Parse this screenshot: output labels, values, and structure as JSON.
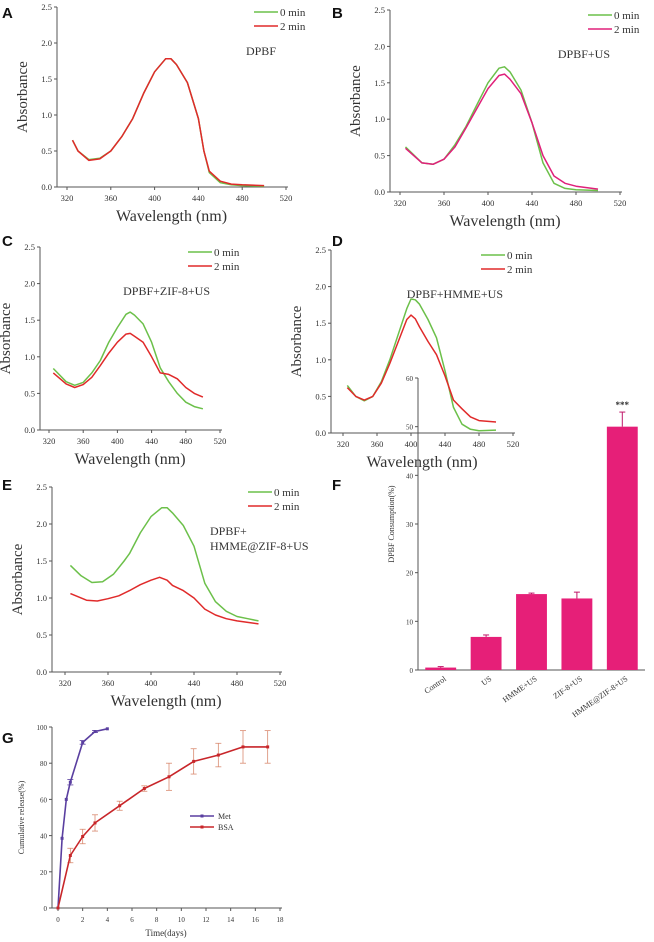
{
  "chart_data": [
    {
      "panel": "A",
      "type": "line",
      "annotation": [
        "DPBF"
      ],
      "xlabel": "Wavelength (nm)",
      "ylabel": "Absorbance",
      "xlim": [
        320,
        520
      ],
      "ylim": [
        0,
        2.5
      ],
      "xticks": [
        320,
        360,
        400,
        440,
        480,
        520
      ],
      "yticks": [
        0.0,
        0.5,
        1.0,
        1.5,
        2.0,
        2.5
      ],
      "legend": "top-right",
      "series": [
        {
          "name": "0 min",
          "color": "#6cc04a",
          "x": [
            325,
            330,
            340,
            350,
            360,
            370,
            380,
            390,
            400,
            410,
            415,
            420,
            430,
            440,
            445,
            450,
            460,
            470,
            480,
            500
          ],
          "y": [
            0.65,
            0.5,
            0.38,
            0.4,
            0.5,
            0.7,
            0.95,
            1.3,
            1.6,
            1.78,
            1.78,
            1.7,
            1.45,
            0.95,
            0.5,
            0.2,
            0.06,
            0.03,
            0.02,
            0.01
          ]
        },
        {
          "name": "2 min",
          "color": "#e02a2a",
          "x": [
            325,
            330,
            340,
            350,
            360,
            370,
            380,
            390,
            400,
            410,
            415,
            420,
            430,
            440,
            445,
            450,
            460,
            470,
            480,
            500
          ],
          "y": [
            0.65,
            0.5,
            0.37,
            0.39,
            0.5,
            0.7,
            0.95,
            1.3,
            1.6,
            1.78,
            1.78,
            1.7,
            1.45,
            0.95,
            0.5,
            0.22,
            0.08,
            0.04,
            0.03,
            0.02
          ]
        }
      ]
    },
    {
      "panel": "B",
      "type": "line",
      "annotation": [
        "DPBF+US"
      ],
      "xlabel": "Wavelength (nm)",
      "ylabel": "Absorbance",
      "xlim": [
        320,
        520
      ],
      "ylim": [
        0,
        2.5
      ],
      "xticks": [
        320,
        360,
        400,
        440,
        480,
        520
      ],
      "yticks": [
        0.0,
        0.5,
        1.0,
        1.5,
        2.0,
        2.5
      ],
      "legend": "top-right",
      "series": [
        {
          "name": "0 min",
          "color": "#6cc04a",
          "x": [
            325,
            340,
            350,
            360,
            370,
            380,
            390,
            400,
            410,
            415,
            420,
            430,
            440,
            450,
            460,
            470,
            480,
            500
          ],
          "y": [
            0.62,
            0.4,
            0.38,
            0.45,
            0.65,
            0.9,
            1.2,
            1.5,
            1.7,
            1.72,
            1.65,
            1.4,
            0.95,
            0.4,
            0.12,
            0.05,
            0.03,
            0.02
          ]
        },
        {
          "name": "2 min",
          "color": "#e0207a",
          "x": [
            325,
            340,
            350,
            360,
            370,
            380,
            390,
            400,
            410,
            415,
            420,
            430,
            440,
            450,
            460,
            470,
            480,
            500
          ],
          "y": [
            0.6,
            0.4,
            0.38,
            0.45,
            0.62,
            0.88,
            1.15,
            1.42,
            1.6,
            1.62,
            1.55,
            1.35,
            0.95,
            0.5,
            0.22,
            0.12,
            0.08,
            0.04
          ]
        }
      ]
    },
    {
      "panel": "C",
      "type": "line",
      "annotation": [
        "DPBF+ZIF-8+US"
      ],
      "xlabel": "Wavelength (nm)",
      "ylabel": "Absorbance",
      "xlim": [
        320,
        520
      ],
      "ylim": [
        0,
        2.5
      ],
      "xticks": [
        320,
        360,
        400,
        440,
        480,
        520
      ],
      "yticks": [
        0.0,
        0.5,
        1.0,
        1.5,
        2.0,
        2.5
      ],
      "legend": "top-right",
      "series": [
        {
          "name": "0 min",
          "color": "#6cc04a",
          "x": [
            325,
            340,
            350,
            360,
            370,
            380,
            390,
            400,
            410,
            415,
            420,
            430,
            440,
            450,
            460,
            470,
            480,
            490,
            500
          ],
          "y": [
            0.84,
            0.66,
            0.61,
            0.65,
            0.78,
            0.95,
            1.2,
            1.4,
            1.58,
            1.61,
            1.57,
            1.45,
            1.2,
            0.85,
            0.66,
            0.5,
            0.38,
            0.32,
            0.29
          ]
        },
        {
          "name": "2 min",
          "color": "#e02a2a",
          "x": [
            325,
            340,
            350,
            360,
            370,
            380,
            390,
            400,
            410,
            415,
            420,
            430,
            440,
            450,
            460,
            470,
            480,
            490,
            500
          ],
          "y": [
            0.78,
            0.63,
            0.58,
            0.62,
            0.72,
            0.88,
            1.05,
            1.2,
            1.31,
            1.32,
            1.28,
            1.2,
            1.0,
            0.78,
            0.76,
            0.7,
            0.58,
            0.5,
            0.45
          ]
        }
      ]
    },
    {
      "panel": "D",
      "type": "line",
      "annotation": [
        "DPBF+HMME+US"
      ],
      "xlabel": "Wavelength (nm)",
      "ylabel": "Absorbance",
      "xlim": [
        320,
        520
      ],
      "ylim": [
        0,
        2.5
      ],
      "xticks": [
        320,
        360,
        400,
        440,
        480,
        520
      ],
      "yticks": [
        0.0,
        0.5,
        1.0,
        1.5,
        2.0,
        2.5
      ],
      "legend": "top-right",
      "series": [
        {
          "name": "0 min",
          "color": "#6cc04a",
          "x": [
            325,
            335,
            345,
            355,
            365,
            375,
            385,
            395,
            400,
            405,
            410,
            420,
            430,
            440,
            450,
            460,
            470,
            480,
            500
          ],
          "y": [
            0.65,
            0.5,
            0.44,
            0.5,
            0.7,
            1.0,
            1.35,
            1.7,
            1.83,
            1.82,
            1.76,
            1.55,
            1.3,
            0.85,
            0.35,
            0.12,
            0.05,
            0.03,
            0.04
          ]
        },
        {
          "name": "2 min",
          "color": "#e02a2a",
          "x": [
            325,
            335,
            345,
            355,
            365,
            375,
            385,
            395,
            400,
            405,
            410,
            420,
            430,
            440,
            450,
            460,
            470,
            480,
            500
          ],
          "y": [
            0.62,
            0.5,
            0.45,
            0.5,
            0.68,
            0.95,
            1.25,
            1.55,
            1.61,
            1.56,
            1.45,
            1.25,
            1.07,
            0.78,
            0.45,
            0.33,
            0.22,
            0.17,
            0.15
          ]
        }
      ]
    },
    {
      "panel": "E",
      "type": "line",
      "annotation": [
        "DPBF+",
        "HMME@ZIF-8+US"
      ],
      "xlabel": "Wavelength (nm)",
      "ylabel": "Absorbance",
      "xlim": [
        320,
        520
      ],
      "ylim": [
        0,
        2.5
      ],
      "xticks": [
        320,
        360,
        400,
        440,
        480,
        520
      ],
      "yticks": [
        0.0,
        0.5,
        1.0,
        1.5,
        2.0,
        2.5
      ],
      "legend": "top-right",
      "series": [
        {
          "name": "0 min",
          "color": "#6cc04a",
          "x": [
            325,
            335,
            345,
            355,
            365,
            375,
            380,
            390,
            400,
            410,
            415,
            420,
            430,
            440,
            450,
            460,
            470,
            480,
            490,
            500
          ],
          "y": [
            1.44,
            1.3,
            1.21,
            1.22,
            1.32,
            1.5,
            1.6,
            1.88,
            2.1,
            2.22,
            2.22,
            2.15,
            1.98,
            1.7,
            1.2,
            0.95,
            0.82,
            0.75,
            0.72,
            0.69
          ]
        },
        {
          "name": "2 min",
          "color": "#e02a2a",
          "x": [
            325,
            340,
            350,
            360,
            370,
            380,
            390,
            400,
            408,
            415,
            420,
            430,
            440,
            450,
            460,
            470,
            480,
            490,
            500
          ],
          "y": [
            1.06,
            0.97,
            0.96,
            0.99,
            1.03,
            1.1,
            1.18,
            1.24,
            1.28,
            1.24,
            1.17,
            1.1,
            1.0,
            0.85,
            0.77,
            0.72,
            0.69,
            0.67,
            0.65
          ]
        }
      ]
    },
    {
      "panel": "F",
      "type": "bar",
      "ylabel": "DPBF Consumption(%)",
      "ylim": [
        0,
        60
      ],
      "yticks": [
        0,
        10,
        20,
        30,
        40,
        50,
        60
      ],
      "categories": [
        "Control",
        "US",
        "HMME+US",
        "ZIF-8+US",
        "HMME@ZIF-8+US"
      ],
      "values": [
        0.5,
        6.8,
        15.6,
        14.7,
        50.0
      ],
      "errors": [
        0.2,
        0.4,
        0.2,
        1.3,
        3.0
      ],
      "color": "#e61f78",
      "significance": {
        "category": "HMME@ZIF-8+US",
        "label": "***"
      }
    },
    {
      "panel": "G",
      "type": "line",
      "xlabel": "Time(days)",
      "ylabel": "Cumulative release(%)",
      "xlim": [
        0,
        18
      ],
      "ylim": [
        0,
        100
      ],
      "xticks": [
        0,
        2,
        4,
        6,
        8,
        10,
        12,
        14,
        16,
        18
      ],
      "yticks": [
        0,
        20,
        40,
        60,
        80,
        100
      ],
      "legend": "center-right",
      "series": [
        {
          "name": "Met",
          "color": "#5a3fa0",
          "x": [
            0,
            0.33,
            0.67,
            1,
            2,
            3,
            4
          ],
          "y": [
            0,
            38.5,
            60,
            69.5,
            91.5,
            97.5,
            99
          ],
          "errors": [
            0,
            0,
            0,
            1.5,
            1,
            0.5,
            0
          ]
        },
        {
          "name": "BSA",
          "color": "#c8262a",
          "errcolor": "#d98a70",
          "x": [
            0,
            1,
            2,
            3,
            5,
            7,
            9,
            11,
            13,
            15,
            17
          ],
          "y": [
            0,
            29,
            39.5,
            47,
            56.5,
            66,
            72.5,
            81,
            84.5,
            89,
            89
          ],
          "errors": [
            0,
            4,
            4,
            4.5,
            2.5,
            1.5,
            7.5,
            7,
            6.5,
            9,
            9
          ]
        }
      ]
    }
  ]
}
